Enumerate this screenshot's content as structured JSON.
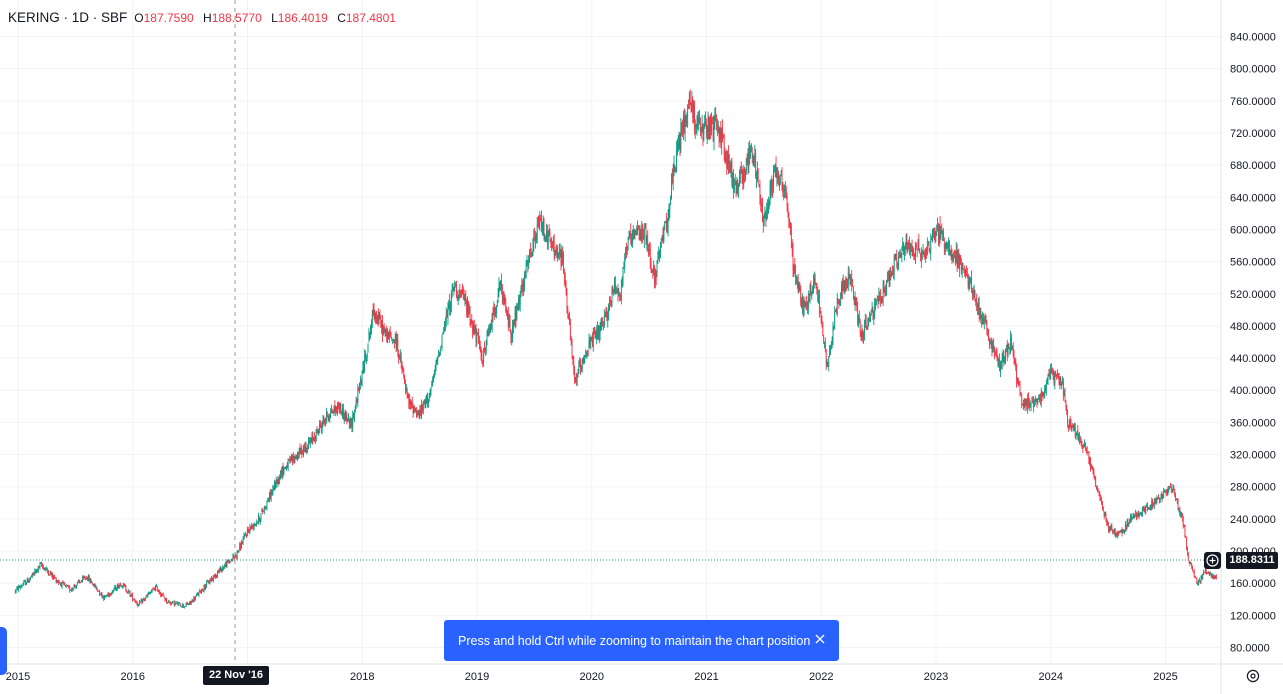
{
  "legend": {
    "symbol": "KERING · 1D · SBF",
    "open_label": "O",
    "open": "187.7590",
    "high_label": "H",
    "high": "188.5770",
    "low_label": "L",
    "low": "186.4019",
    "close_label": "C",
    "close": "187.4801"
  },
  "crosshair": {
    "date_label": "22 Nov '16",
    "price_label": "188.8311"
  },
  "toast": {
    "message": "Press and hold Ctrl while zooming to maintain the chart position"
  },
  "icons": {
    "close": "close-icon",
    "settings": "settings-icon",
    "plus": "plus-circle-icon",
    "left_tab": "chevron-right-icon"
  },
  "colors": {
    "up": "#089981",
    "down": "#f23645",
    "grid": "#f0f3fa",
    "accent": "#2962ff",
    "crosshair": "#9598a1",
    "dark_label": "#131722"
  },
  "chart_data": {
    "type": "candlestick",
    "title": "KERING · 1D · SBF",
    "y_axis_labels": [
      "840.0000",
      "800.0000",
      "760.0000",
      "720.0000",
      "680.0000",
      "640.0000",
      "600.0000",
      "560.0000",
      "520.0000",
      "480.0000",
      "440.0000",
      "400.0000",
      "360.0000",
      "320.0000",
      "280.0000",
      "240.0000",
      "200.0000",
      "160.0000",
      "120.0000",
      "80.0000"
    ],
    "x_axis_labels": [
      "2015",
      "2016",
      "2017",
      "2018",
      "2019",
      "2020",
      "2021",
      "2022",
      "2023",
      "2024",
      "2025"
    ],
    "ylim": [
      68,
      852
    ],
    "xlim": [
      2014.97,
      2025.5
    ],
    "grid": true,
    "close_price_path": {
      "x": [
        2014.97,
        2015.1,
        2015.2,
        2015.35,
        2015.45,
        2015.6,
        2015.75,
        2015.9,
        2016.05,
        2016.2,
        2016.3,
        2016.45,
        2016.5,
        2016.65,
        2016.75,
        2016.9,
        2017.0,
        2017.1,
        2017.2,
        2017.3,
        2017.4,
        2017.55,
        2017.7,
        2017.8,
        2017.9,
        2018.0,
        2018.1,
        2018.2,
        2018.3,
        2018.4,
        2018.5,
        2018.6,
        2018.7,
        2018.8,
        2018.9,
        2019.05,
        2019.2,
        2019.3,
        2019.45,
        2019.55,
        2019.65,
        2019.75,
        2019.85,
        2019.95,
        2020.1,
        2020.2,
        2020.25,
        2020.3,
        2020.45,
        2020.55,
        2020.65,
        2020.75,
        2020.85,
        2020.95,
        2021.1,
        2021.25,
        2021.4,
        2021.5,
        2021.6,
        2021.7,
        2021.75,
        2021.85,
        2021.95,
        2022.05,
        2022.15,
        2022.25,
        2022.35,
        2022.5,
        2022.65,
        2022.75,
        2022.9,
        2023.0,
        2023.1,
        2023.2,
        2023.3,
        2023.45,
        2023.55,
        2023.65,
        2023.75,
        2023.9,
        2024.0,
        2024.1,
        2024.15,
        2024.3,
        2024.4,
        2024.5,
        2024.6,
        2024.7,
        2024.8,
        2024.9,
        2025.05,
        2025.15,
        2025.2,
        2025.28,
        2025.35,
        2025.45,
        2025.5
      ],
      "close": [
        150,
        165,
        183,
        162,
        152,
        168,
        142,
        160,
        133,
        155,
        137,
        132,
        135,
        160,
        175,
        195,
        225,
        240,
        270,
        300,
        315,
        335,
        370,
        380,
        355,
        420,
        500,
        470,
        460,
        385,
        370,
        400,
        470,
        530,
        510,
        440,
        530,
        470,
        560,
        610,
        580,
        560,
        410,
        450,
        480,
        530,
        520,
        580,
        600,
        540,
        610,
        700,
        760,
        720,
        730,
        650,
        700,
        610,
        680,
        640,
        560,
        500,
        540,
        430,
        520,
        540,
        470,
        510,
        560,
        580,
        570,
        600,
        580,
        560,
        530,
        470,
        430,
        460,
        380,
        390,
        420,
        410,
        360,
        330,
        280,
        230,
        220,
        240,
        250,
        260,
        280,
        240,
        190,
        160,
        175,
        165,
        170
      ]
    }
  }
}
